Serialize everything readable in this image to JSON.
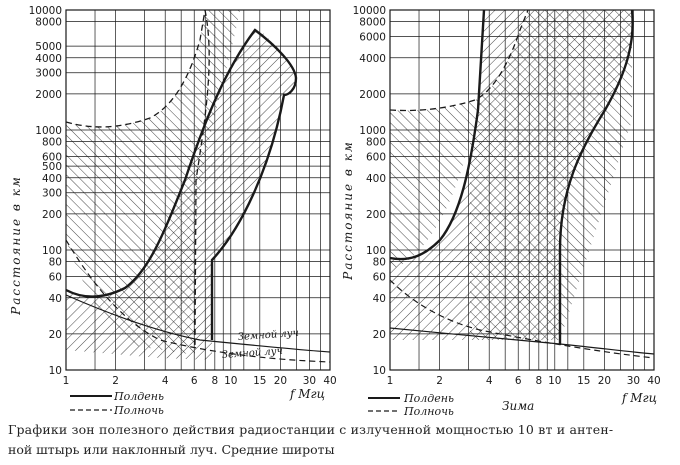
{
  "colors": {
    "ink": "#1a1a1a",
    "paper": "#ffffff"
  },
  "panels": [
    {
      "id": "left",
      "y_axis_label": "Расстояние в км",
      "y_tick_labels": [
        "10000",
        "8000",
        "5000",
        "4000",
        "3000",
        "2000",
        "1000",
        "800",
        "600",
        "500",
        "400",
        "300",
        "200",
        "100",
        "80",
        "60",
        "40",
        "20",
        "10"
      ],
      "x_tick_labels": [
        "1",
        "2",
        "4",
        "6",
        "8",
        "10",
        "15",
        "20",
        "30",
        "40"
      ],
      "x_axis_label": "f Мгц",
      "legend": {
        "solid": "Полдень",
        "dashed": "Полночь"
      },
      "annotations": {
        "ground_wave_1": "Земной луч",
        "ground_wave_2": "Земной луч"
      }
    },
    {
      "id": "right",
      "y_axis_label": "Расстояние в км",
      "y_tick_labels": [
        "10000",
        "8000",
        "6000",
        "4000",
        "2000",
        "1000",
        "800",
        "600",
        "400",
        "200",
        "100",
        "80",
        "60",
        "40",
        "20",
        "10"
      ],
      "x_tick_labels": [
        "1",
        "2",
        "4",
        "6",
        "8",
        "10",
        "15",
        "20",
        "30",
        "40"
      ],
      "x_axis_label": "f Мгц",
      "legend": {
        "solid": "Полдень",
        "dashed": "Полночь"
      },
      "season_label": "Зима"
    }
  ],
  "caption": {
    "line1": "Графики зон полезного действия радиостанции с излученной мощностью 10 вт и антен-",
    "line2": "ной штырь или наклонный луч. Средние широты"
  }
}
